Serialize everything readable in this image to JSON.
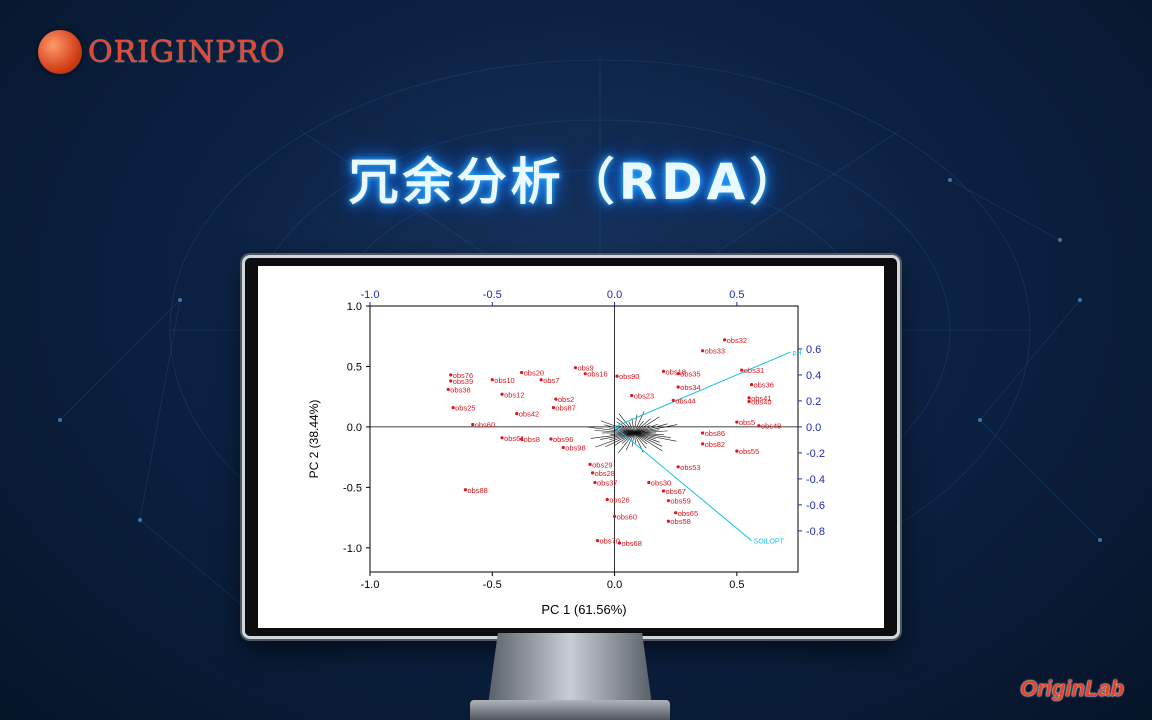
{
  "brand": {
    "logo_text": "ORIGINPRO",
    "footer_logo_text": "OriginLab"
  },
  "slide_title": "冗余分析（RDA）",
  "chart_data": {
    "type": "scatter",
    "subtype": "biplot",
    "xlabel": "PC 1 (61.56%)",
    "ylabel": "PC 2 (38.44%)",
    "xlim": [
      -1.0,
      0.75
    ],
    "ylim": [
      -1.2,
      1.0
    ],
    "x_ticks": [
      -1.0,
      -0.5,
      0.0,
      0.5
    ],
    "y_ticks": [
      -1.0,
      -0.5,
      0.0,
      0.5,
      1.0
    ],
    "top_ticks": [
      -1.0,
      -0.5,
      0.0,
      0.5
    ],
    "right_ticks": [
      0.6,
      0.4,
      0.2,
      0.0,
      -0.2,
      -0.4,
      -0.6,
      -0.8
    ],
    "colors": {
      "points": "#e0141c",
      "loadings": "#19bfe6",
      "top_right_axes": "#1d2ab8",
      "species": "#111111"
    },
    "points": [
      {
        "label": "obs32",
        "x": 0.45,
        "y": 0.72
      },
      {
        "label": "obs33",
        "x": 0.36,
        "y": 0.63
      },
      {
        "label": "obs31",
        "x": 0.52,
        "y": 0.47
      },
      {
        "label": "obs36",
        "x": 0.56,
        "y": 0.35
      },
      {
        "label": "obs76",
        "x": -0.67,
        "y": 0.43
      },
      {
        "label": "obs39",
        "x": -0.67,
        "y": 0.38
      },
      {
        "label": "obs38",
        "x": -0.68,
        "y": 0.31
      },
      {
        "label": "obs25",
        "x": -0.66,
        "y": 0.16
      },
      {
        "label": "obs10",
        "x": -0.5,
        "y": 0.39
      },
      {
        "label": "obs20",
        "x": -0.38,
        "y": 0.45
      },
      {
        "label": "obs7",
        "x": -0.3,
        "y": 0.39
      },
      {
        "label": "obs9",
        "x": -0.16,
        "y": 0.49
      },
      {
        "label": "obs16",
        "x": -0.12,
        "y": 0.44
      },
      {
        "label": "obs90",
        "x": 0.01,
        "y": 0.42
      },
      {
        "label": "obs18",
        "x": 0.2,
        "y": 0.46
      },
      {
        "label": "obs35",
        "x": 0.26,
        "y": 0.44
      },
      {
        "label": "obs34",
        "x": 0.26,
        "y": 0.33
      },
      {
        "label": "obs44",
        "x": 0.24,
        "y": 0.22
      },
      {
        "label": "obs41",
        "x": 0.55,
        "y": 0.24
      },
      {
        "label": "obs40",
        "x": 0.55,
        "y": 0.21
      },
      {
        "label": "obs42",
        "x": -0.4,
        "y": 0.11
      },
      {
        "label": "obs12",
        "x": -0.46,
        "y": 0.27
      },
      {
        "label": "obs2",
        "x": -0.24,
        "y": 0.23
      },
      {
        "label": "obs87",
        "x": -0.25,
        "y": 0.16
      },
      {
        "label": "obs23",
        "x": 0.07,
        "y": 0.26
      },
      {
        "label": "obs60",
        "x": -0.58,
        "y": 0.02
      },
      {
        "label": "obs61",
        "x": -0.46,
        "y": -0.09
      },
      {
        "label": "obs8",
        "x": -0.38,
        "y": -0.1
      },
      {
        "label": "obs96",
        "x": -0.26,
        "y": -0.1
      },
      {
        "label": "obs98",
        "x": -0.21,
        "y": -0.17
      },
      {
        "label": "obs88",
        "x": -0.61,
        "y": -0.52
      },
      {
        "label": "obs29",
        "x": -0.1,
        "y": -0.31
      },
      {
        "label": "obs28",
        "x": -0.09,
        "y": -0.38
      },
      {
        "label": "obs37",
        "x": -0.08,
        "y": -0.46
      },
      {
        "label": "obs26",
        "x": -0.03,
        "y": -0.6
      },
      {
        "label": "obs60",
        "x": 0.0,
        "y": -0.74
      },
      {
        "label": "obs70",
        "x": -0.07,
        "y": -0.94
      },
      {
        "label": "obs68",
        "x": 0.02,
        "y": -0.96
      },
      {
        "label": "obs67",
        "x": 0.2,
        "y": -0.53
      },
      {
        "label": "obs59",
        "x": 0.22,
        "y": -0.61
      },
      {
        "label": "obs65",
        "x": 0.25,
        "y": -0.71
      },
      {
        "label": "obs58",
        "x": 0.22,
        "y": -0.78
      },
      {
        "label": "obs53",
        "x": 0.26,
        "y": -0.33
      },
      {
        "label": "obs82",
        "x": 0.36,
        "y": -0.14
      },
      {
        "label": "obs55",
        "x": 0.5,
        "y": -0.2
      },
      {
        "label": "obs86",
        "x": 0.36,
        "y": -0.05
      },
      {
        "label": "obs49",
        "x": 0.59,
        "y": 0.01
      },
      {
        "label": "obs5",
        "x": 0.5,
        "y": 0.04
      },
      {
        "label": "obs30",
        "x": 0.14,
        "y": -0.46
      }
    ],
    "loadings": [
      {
        "label": "pH",
        "x": 0.72,
        "y": 0.62
      },
      {
        "label": "SOILOPT",
        "x": 0.56,
        "y": -0.94
      }
    ]
  }
}
